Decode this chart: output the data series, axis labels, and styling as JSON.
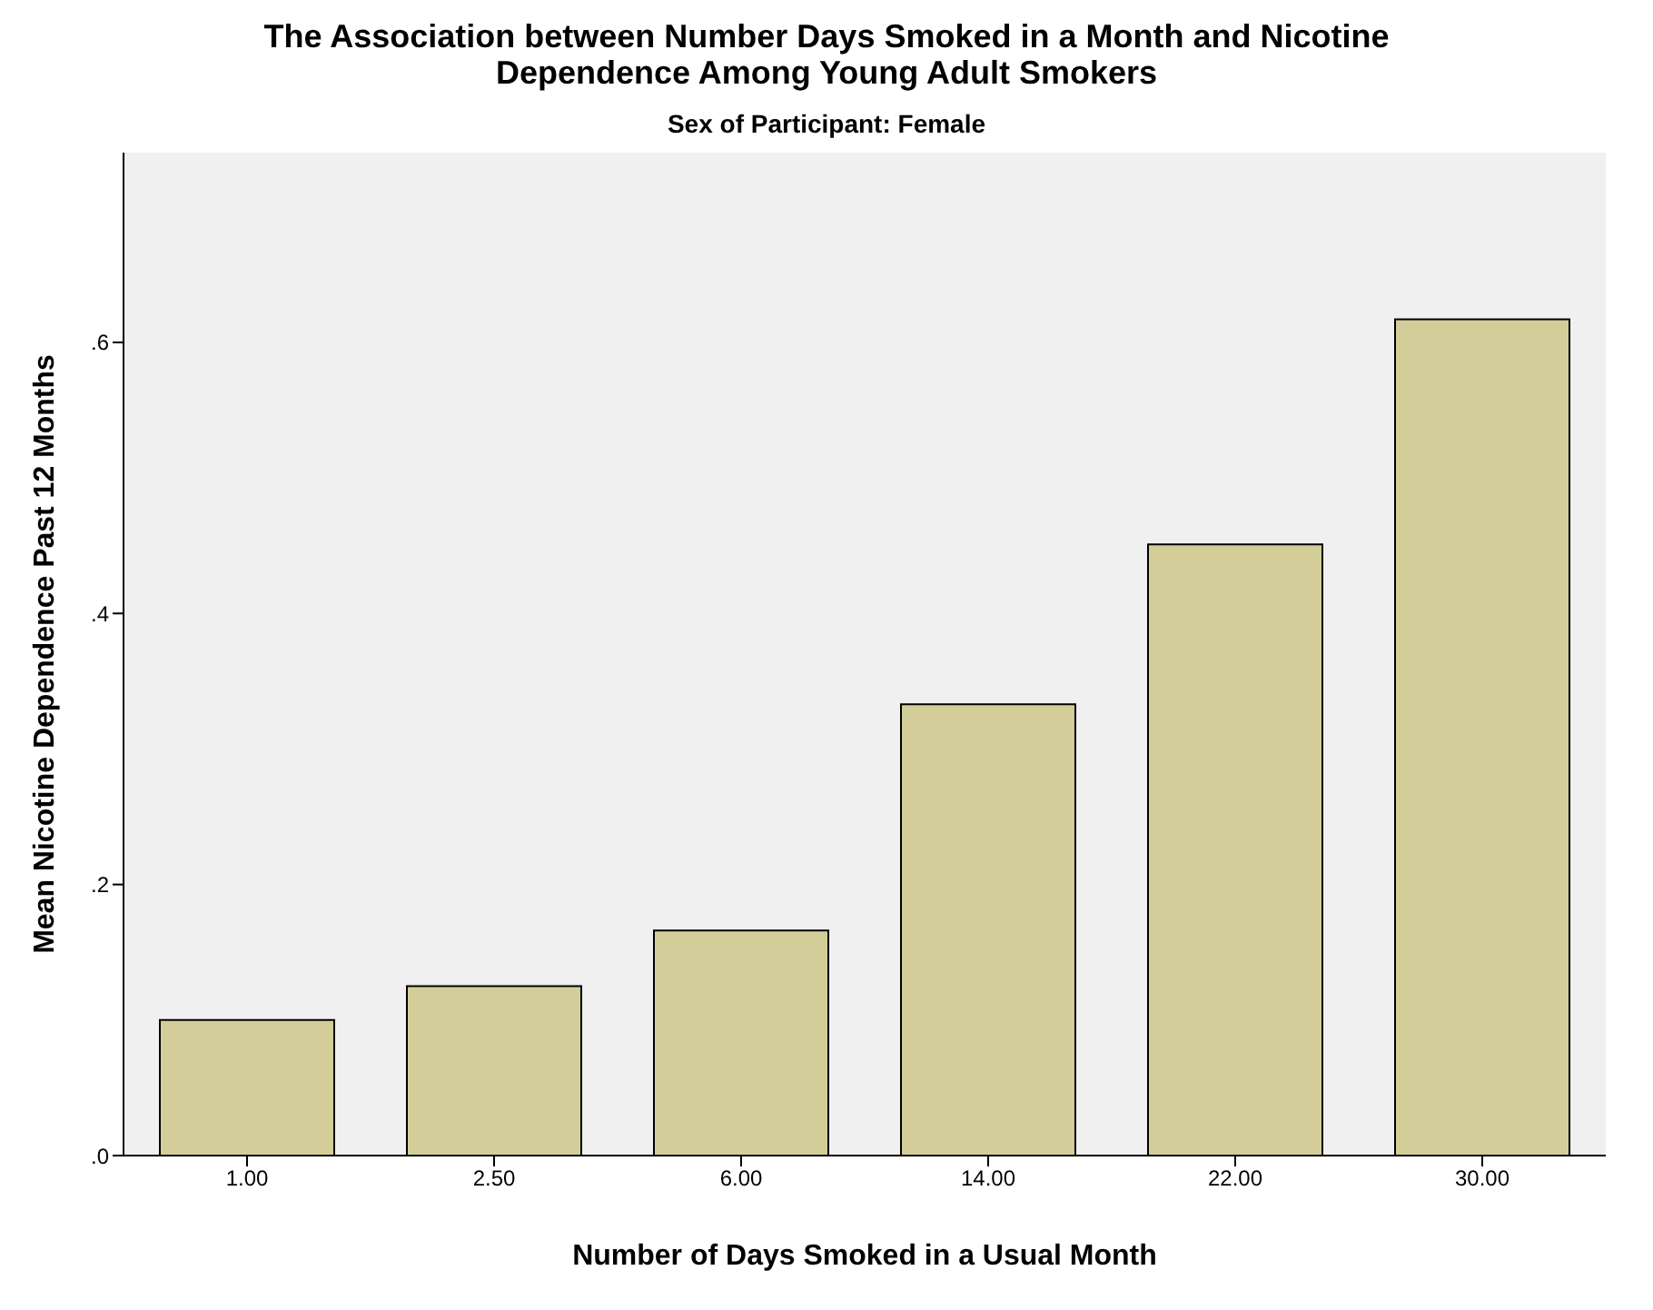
{
  "chart_data": {
    "type": "bar",
    "title": "The Association between Number Days Smoked in a Month and Nicotine Dependence Among Young Adult Smokers",
    "subtitle": "Sex of Participant: Female",
    "xlabel": "Number of Days Smoked in a Usual Month",
    "ylabel": "Mean Nicotine Dependence Past 12 Months",
    "categories": [
      "1.00",
      "2.50",
      "6.00",
      "14.00",
      "22.00",
      "30.00"
    ],
    "values": [
      0.1,
      0.125,
      0.166,
      0.333,
      0.451,
      0.617
    ],
    "color": "#d3ce99",
    "ylim": [
      0,
      0.74
    ],
    "yticks": [
      {
        "value": 0,
        "label": ".0"
      },
      {
        "value": 0.2,
        "label": ".2"
      },
      {
        "value": 0.4,
        "label": ".4"
      },
      {
        "value": 0.6,
        "label": ".6"
      }
    ],
    "grid": false,
    "legend": false
  }
}
